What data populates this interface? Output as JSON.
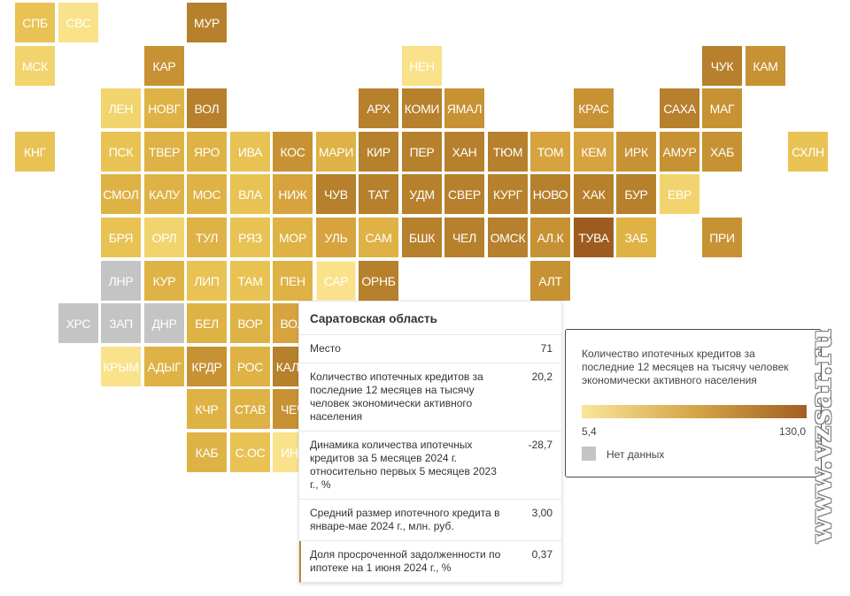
{
  "colors": {
    "c1": "#f9e28a",
    "c2": "#f2d46e",
    "c3": "#e8c354",
    "c4": "#deb244",
    "c5": "#d6a33e",
    "c6": "#c79233",
    "c7": "#b6802c",
    "c8": "#9e5b1f",
    "nd": "#c4c4c4",
    "gray": "#c4c4c4"
  },
  "cells": [
    {
      "id": "spb",
      "label": "СПБ",
      "c": 0,
      "r": 0,
      "t": "c3"
    },
    {
      "id": "svs",
      "label": "СВС",
      "c": 1,
      "r": 0,
      "t": "c1"
    },
    {
      "id": "mur",
      "label": "МУР",
      "c": 4,
      "r": 0,
      "t": "c7"
    },
    {
      "id": "msk",
      "label": "МСК",
      "c": 0,
      "r": 1,
      "t": "c2"
    },
    {
      "id": "kar",
      "label": "КАР",
      "c": 3,
      "r": 1,
      "t": "c6"
    },
    {
      "id": "nen",
      "label": "НЕН",
      "c": 9,
      "r": 1,
      "t": "c1"
    },
    {
      "id": "chuk",
      "label": "ЧУК",
      "c": 16,
      "r": 1,
      "t": "c7"
    },
    {
      "id": "kam",
      "label": "КАМ",
      "c": 17,
      "r": 1,
      "t": "c6"
    },
    {
      "id": "len",
      "label": "ЛЕН",
      "c": 2,
      "r": 2,
      "t": "c2"
    },
    {
      "id": "novg",
      "label": "НОВГ",
      "c": 3,
      "r": 2,
      "t": "c4"
    },
    {
      "id": "vol",
      "label": "ВОЛ",
      "c": 4,
      "r": 2,
      "t": "c7"
    },
    {
      "id": "arh",
      "label": "АРХ",
      "c": 8,
      "r": 2,
      "t": "c7"
    },
    {
      "id": "komi",
      "label": "КОМИ",
      "c": 9,
      "r": 2,
      "t": "c7"
    },
    {
      "id": "yamal",
      "label": "ЯМАЛ",
      "c": 10,
      "r": 2,
      "t": "c6"
    },
    {
      "id": "kras",
      "label": "КРАС",
      "c": 13,
      "r": 2,
      "t": "c6"
    },
    {
      "id": "saha",
      "label": "САХА",
      "c": 15,
      "r": 2,
      "t": "c7"
    },
    {
      "id": "mag",
      "label": "МАГ",
      "c": 16,
      "r": 2,
      "t": "c6"
    },
    {
      "id": "kng",
      "label": "КНГ",
      "c": 0,
      "r": 3,
      "t": "c3"
    },
    {
      "id": "psk",
      "label": "ПСК",
      "c": 2,
      "r": 3,
      "t": "c3"
    },
    {
      "id": "tver",
      "label": "ТВЕР",
      "c": 3,
      "r": 3,
      "t": "c4"
    },
    {
      "id": "yaro",
      "label": "ЯРО",
      "c": 4,
      "r": 3,
      "t": "c4"
    },
    {
      "id": "iva",
      "label": "ИВА",
      "c": 5,
      "r": 3,
      "t": "c3"
    },
    {
      "id": "kos",
      "label": "КОС",
      "c": 6,
      "r": 3,
      "t": "c6"
    },
    {
      "id": "mari",
      "label": "МАРИ",
      "c": 7,
      "r": 3,
      "t": "c4"
    },
    {
      "id": "kir",
      "label": "КИР",
      "c": 8,
      "r": 3,
      "t": "c7"
    },
    {
      "id": "per",
      "label": "ПЕР",
      "c": 9,
      "r": 3,
      "t": "c7"
    },
    {
      "id": "han",
      "label": "ХАН",
      "c": 10,
      "r": 3,
      "t": "c7"
    },
    {
      "id": "tyum",
      "label": "ТЮМ",
      "c": 11,
      "r": 3,
      "t": "c7"
    },
    {
      "id": "tom",
      "label": "ТОМ",
      "c": 12,
      "r": 3,
      "t": "c5"
    },
    {
      "id": "kem",
      "label": "КЕМ",
      "c": 13,
      "r": 3,
      "t": "c5"
    },
    {
      "id": "irk",
      "label": "ИРК",
      "c": 14,
      "r": 3,
      "t": "c6"
    },
    {
      "id": "amur",
      "label": "АМУР",
      "c": 15,
      "r": 3,
      "t": "c6"
    },
    {
      "id": "hab",
      "label": "ХАБ",
      "c": 16,
      "r": 3,
      "t": "c6"
    },
    {
      "id": "shln",
      "label": "СХЛН",
      "c": 18,
      "r": 3,
      "t": "c3"
    },
    {
      "id": "smol",
      "label": "СМОЛ",
      "c": 2,
      "r": 4,
      "t": "c4"
    },
    {
      "id": "kalu",
      "label": "КАЛУ",
      "c": 3,
      "r": 4,
      "t": "c4"
    },
    {
      "id": "mos",
      "label": "МОС",
      "c": 4,
      "r": 4,
      "t": "c4"
    },
    {
      "id": "vla",
      "label": "ВЛА",
      "c": 5,
      "r": 4,
      "t": "c3"
    },
    {
      "id": "nizh",
      "label": "НИЖ",
      "c": 6,
      "r": 4,
      "t": "c5"
    },
    {
      "id": "chuv",
      "label": "ЧУВ",
      "c": 7,
      "r": 4,
      "t": "c7"
    },
    {
      "id": "tat",
      "label": "ТАТ",
      "c": 8,
      "r": 4,
      "t": "c7"
    },
    {
      "id": "udm",
      "label": "УДМ",
      "c": 9,
      "r": 4,
      "t": "c7"
    },
    {
      "id": "sver",
      "label": "СВЕР",
      "c": 10,
      "r": 4,
      "t": "c7"
    },
    {
      "id": "kurg",
      "label": "КУРГ",
      "c": 11,
      "r": 4,
      "t": "c7"
    },
    {
      "id": "novo",
      "label": "НОВО",
      "c": 12,
      "r": 4,
      "t": "c7"
    },
    {
      "id": "hak",
      "label": "ХАК",
      "c": 13,
      "r": 4,
      "t": "c7"
    },
    {
      "id": "bur",
      "label": "БУР",
      "c": 14,
      "r": 4,
      "t": "c7"
    },
    {
      "id": "evr",
      "label": "ЕВР",
      "c": 15,
      "r": 4,
      "t": "c2"
    },
    {
      "id": "brya",
      "label": "БРЯ",
      "c": 2,
      "r": 5,
      "t": "c3"
    },
    {
      "id": "orl",
      "label": "ОРЛ",
      "c": 3,
      "r": 5,
      "t": "c2"
    },
    {
      "id": "tul",
      "label": "ТУЛ",
      "c": 4,
      "r": 5,
      "t": "c4"
    },
    {
      "id": "ryaz",
      "label": "РЯЗ",
      "c": 5,
      "r": 5,
      "t": "c3"
    },
    {
      "id": "mor",
      "label": "МОР",
      "c": 6,
      "r": 5,
      "t": "c4"
    },
    {
      "id": "ul",
      "label": "УЛЬ",
      "c": 7,
      "r": 5,
      "t": "c5"
    },
    {
      "id": "sam",
      "label": "САМ",
      "c": 8,
      "r": 5,
      "t": "c4"
    },
    {
      "id": "bshk",
      "label": "БШК",
      "c": 9,
      "r": 5,
      "t": "c7"
    },
    {
      "id": "chel",
      "label": "ЧЕЛ",
      "c": 10,
      "r": 5,
      "t": "c7"
    },
    {
      "id": "omsk",
      "label": "ОМСК",
      "c": 11,
      "r": 5,
      "t": "c7"
    },
    {
      "id": "alk",
      "label": "АЛ.К",
      "c": 12,
      "r": 5,
      "t": "c6"
    },
    {
      "id": "tuva",
      "label": "ТУВА",
      "c": 13,
      "r": 5,
      "t": "c8"
    },
    {
      "id": "zab",
      "label": "ЗАБ",
      "c": 14,
      "r": 5,
      "t": "c4"
    },
    {
      "id": "pri",
      "label": "ПРИ",
      "c": 16,
      "r": 5,
      "t": "c6"
    },
    {
      "id": "lnr",
      "label": "ЛНР",
      "c": 2,
      "r": 6,
      "t": "nd"
    },
    {
      "id": "kur",
      "label": "КУР",
      "c": 3,
      "r": 6,
      "t": "c4"
    },
    {
      "id": "lip",
      "label": "ЛИП",
      "c": 4,
      "r": 6,
      "t": "c3"
    },
    {
      "id": "tam",
      "label": "ТАМ",
      "c": 5,
      "r": 6,
      "t": "c3"
    },
    {
      "id": "pen",
      "label": "ПЕН",
      "c": 6,
      "r": 6,
      "t": "c4"
    },
    {
      "id": "sar",
      "label": "САР",
      "c": 7,
      "r": 6,
      "t": "c1",
      "selected": true
    },
    {
      "id": "ornb",
      "label": "ОРНБ",
      "c": 8,
      "r": 6,
      "t": "c7"
    },
    {
      "id": "alt",
      "label": "АЛТ",
      "c": 12,
      "r": 6,
      "t": "c6"
    },
    {
      "id": "hrs",
      "label": "ХРС",
      "c": 1,
      "r": 7,
      "t": "nd"
    },
    {
      "id": "zap",
      "label": "ЗАП",
      "c": 2,
      "r": 7,
      "t": "nd"
    },
    {
      "id": "dnr",
      "label": "ДНР",
      "c": 3,
      "r": 7,
      "t": "nd"
    },
    {
      "id": "bel",
      "label": "БЕЛ",
      "c": 4,
      "r": 7,
      "t": "c4"
    },
    {
      "id": "vor",
      "label": "ВОР",
      "c": 5,
      "r": 7,
      "t": "c4"
    },
    {
      "id": "vol2",
      "label": "ВОЛ",
      "c": 6,
      "r": 7,
      "t": "c5"
    },
    {
      "id": "krym",
      "label": "КРЫМ",
      "c": 2,
      "r": 8,
      "t": "c1"
    },
    {
      "id": "adyg",
      "label": "АДЫГ",
      "c": 3,
      "r": 8,
      "t": "c4"
    },
    {
      "id": "krdr",
      "label": "КРДР",
      "c": 4,
      "r": 8,
      "t": "c6"
    },
    {
      "id": "ros",
      "label": "РОС",
      "c": 5,
      "r": 8,
      "t": "c4"
    },
    {
      "id": "kalm",
      "label": "КАЛМ",
      "c": 6,
      "r": 8,
      "t": "c7"
    },
    {
      "id": "kchr",
      "label": "КЧР",
      "c": 4,
      "r": 9,
      "t": "c4"
    },
    {
      "id": "stav",
      "label": "СТАВ",
      "c": 5,
      "r": 9,
      "t": "c4"
    },
    {
      "id": "chech",
      "label": "ЧЕЧ",
      "c": 6,
      "r": 9,
      "t": "c6"
    },
    {
      "id": "kab",
      "label": "КАБ",
      "c": 4,
      "r": 10,
      "t": "c4"
    },
    {
      "id": "sos",
      "label": "С.ОС",
      "c": 5,
      "r": 10,
      "t": "c3"
    },
    {
      "id": "ing",
      "label": "ИНГ",
      "c": 6,
      "r": 10,
      "t": "c1"
    }
  ],
  "tooltip": {
    "title": "Саратовская область",
    "rows": [
      {
        "label": "Место",
        "value": "71"
      },
      {
        "label": "Количество ипотечных кредитов за последние 12 месяцев на тысячу человек экономически активного населения",
        "value": "20,2"
      },
      {
        "label": "Динамика количества ипотечных кредитов за 5 месяцев 2024 г. относительно первых 5 месяцев 2023 г., %",
        "value": "-28,7"
      },
      {
        "label": "Средний размер ипотечного кредита в январе-мае 2024 г., млн. руб.",
        "value": "3,00"
      },
      {
        "label": "Доля просроченной задолженности по ипотеке на 1 июня 2024 г., %",
        "value": "0,37"
      }
    ]
  },
  "legend": {
    "title": "Количество ипотечных кредитов за последние 12 месяцев на тысячу человек экономически активного населения",
    "min": "5,4",
    "max": "130,0",
    "no_data_label": "Нет данных"
  },
  "watermark": "www.vzsar.ru"
}
